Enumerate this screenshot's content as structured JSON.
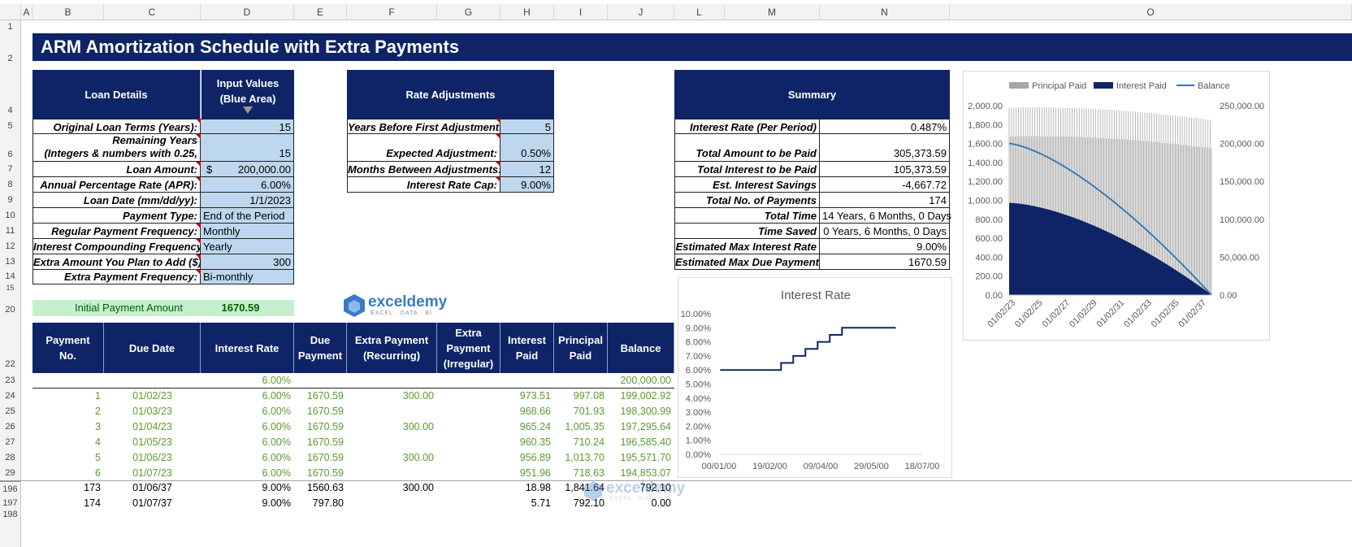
{
  "columns": [
    "A",
    "B",
    "C",
    "D",
    "E",
    "F",
    "G",
    "H",
    "I",
    "J",
    "L",
    "M",
    "N",
    "O"
  ],
  "rows": {
    "r1": "1",
    "r2": "2",
    "r4": "4",
    "r5": "5",
    "r6": "6",
    "r7": "7",
    "r8": "8",
    "r9": "9",
    "r10": "10",
    "r11": "11",
    "r12": "12",
    "r13": "13",
    "r14": "14",
    "r15": "15",
    "r20": "20",
    "r22": "22",
    "r23": "23",
    "r24": "24",
    "r25": "25",
    "r26": "26",
    "r27": "27",
    "r28": "28",
    "r29": "29",
    "r196": "196",
    "r197": "197",
    "r198": "198"
  },
  "title": "ARM Amortization Schedule with Extra Payments",
  "loan": {
    "header": "Loan Details",
    "input_header_1": "Input Values",
    "input_header_2": "(Blue Area)",
    "rows": [
      {
        "label": "Original Loan Terms (Years):",
        "value": "15"
      },
      {
        "label": "Remaining Years",
        "label2": "(Integers & numbers with 0.25,",
        "value": "15"
      },
      {
        "label": "Loan Amount:",
        "currency": "$",
        "value": "200,000.00"
      },
      {
        "label": "Annual Percentage Rate (APR):",
        "value": "6.00%"
      },
      {
        "label": "Loan Date (mm/dd/yy):",
        "value": "1/1/2023"
      },
      {
        "label": "Payment Type:",
        "value": "End of the Period"
      },
      {
        "label": "Regular Payment Frequency:",
        "value": "Monthly"
      },
      {
        "label": "Interest Compounding Frequency:",
        "value": "Yearly"
      },
      {
        "label": "Extra Amount You Plan to Add ($):",
        "value": "300"
      },
      {
        "label": "Extra Payment Frequency:",
        "value": "Bi-monthly"
      }
    ]
  },
  "rate": {
    "header": "Rate Adjustments",
    "rows": [
      {
        "label": "Years Before First Adjustment:",
        "value": "5"
      },
      {
        "label": "Expected Adjustment:",
        "value": "0.50%"
      },
      {
        "label": "Months Between Adjustments:",
        "value": "12"
      },
      {
        "label": "Interest Rate Cap:",
        "value": "9.00%"
      }
    ]
  },
  "summary": {
    "header": "Summary",
    "rows": [
      {
        "label": "Interest Rate (Per Period)",
        "value": "0.487%"
      },
      {
        "label": "Total Amount to be Paid",
        "value": "305,373.59"
      },
      {
        "label": "Total Interest to be Paid",
        "value": "105,373.59"
      },
      {
        "label": "Est. Interest Savings",
        "value": "-4,667.72"
      },
      {
        "label": "Total No. of Payments",
        "value": "174"
      },
      {
        "label": "Total Time",
        "value": "14 Years, 6 Months, 0 Days"
      },
      {
        "label": "Time Saved",
        "value": "0 Years, 6 Months, 0 Days"
      },
      {
        "label": "Estimated Max Interest Rate",
        "value": "9.00%"
      },
      {
        "label": "Estimated Max Due Payment",
        "value": "1670.59"
      }
    ]
  },
  "initial_payment": {
    "label": "Initial Payment Amount",
    "value": "1670.59"
  },
  "logo": {
    "name": "exceldemy",
    "tagline": "EXCEL · DATA · BI"
  },
  "schedule": {
    "headers": [
      [
        "Payment",
        "No."
      ],
      [
        "Due Date"
      ],
      [
        "Interest Rate"
      ],
      [
        "Due",
        "Payment"
      ],
      [
        "Extra Payment",
        "(Recurring)"
      ],
      [
        "Extra",
        "Payment",
        "(Irregular)"
      ],
      [
        "Interest",
        "Paid"
      ],
      [
        "Principal",
        "Paid"
      ],
      [
        "Balance"
      ]
    ],
    "start_row": {
      "rate": "6.00%",
      "balance": "200,000.00"
    },
    "rows": [
      {
        "no": "1",
        "date": "01/02/23",
        "rate": "6.00%",
        "due": "1670.59",
        "extra": "300.00",
        "irr": "",
        "interest": "973.51",
        "principal": "997.08",
        "balance": "199,002.92"
      },
      {
        "no": "2",
        "date": "01/03/23",
        "rate": "6.00%",
        "due": "1670.59",
        "extra": "",
        "irr": "",
        "interest": "968.66",
        "principal": "701.93",
        "balance": "198,300.99"
      },
      {
        "no": "3",
        "date": "01/04/23",
        "rate": "6.00%",
        "due": "1670.59",
        "extra": "300.00",
        "irr": "",
        "interest": "965.24",
        "principal": "1,005.35",
        "balance": "197,295.64"
      },
      {
        "no": "4",
        "date": "01/05/23",
        "rate": "6.00%",
        "due": "1670.59",
        "extra": "",
        "irr": "",
        "interest": "960.35",
        "principal": "710.24",
        "balance": "196,585.40"
      },
      {
        "no": "5",
        "date": "01/06/23",
        "rate": "6.00%",
        "due": "1670.59",
        "extra": "300.00",
        "irr": "",
        "interest": "956.89",
        "principal": "1,013.70",
        "balance": "195,571.70"
      },
      {
        "no": "6",
        "date": "01/07/23",
        "rate": "6.00%",
        "due": "1670.59",
        "extra": "",
        "irr": "",
        "interest": "951.96",
        "principal": "718.63",
        "balance": "194,853.07"
      }
    ],
    "end_rows": [
      {
        "no": "173",
        "date": "01/06/37",
        "rate": "9.00%",
        "due": "1560.63",
        "extra": "300.00",
        "irr": "",
        "interest": "18.98",
        "principal": "1,841.64",
        "balance": "792.10"
      },
      {
        "no": "174",
        "date": "01/07/37",
        "rate": "9.00%",
        "due": "797.80",
        "extra": "",
        "irr": "",
        "interest": "5.71",
        "principal": "792.10",
        "balance": "0.00"
      }
    ]
  },
  "colors": {
    "navy": "#0e2466",
    "input_blue": "#bdd7ee",
    "green_text": "#5b9b2f",
    "initial_bg": "#c6efce",
    "balance_line": "#2e75b6",
    "principal_bar": "#a6a6a6"
  },
  "chart_data": [
    {
      "type": "line",
      "title": "Interest Rate",
      "x_tick_labels": [
        "00/01/00",
        "19/02/00",
        "09/04/00",
        "29/05/00",
        "18/07/00"
      ],
      "xlim": [
        0,
        200
      ],
      "y_tick_labels": [
        "0.00%",
        "1.00%",
        "2.00%",
        "3.00%",
        "4.00%",
        "5.00%",
        "6.00%",
        "7.00%",
        "8.00%",
        "9.00%",
        "10.00%"
      ],
      "ylim": [
        0,
        10
      ],
      "series": [
        {
          "name": "Interest Rate",
          "x": [
            1,
            61,
            61,
            73,
            73,
            85,
            85,
            97,
            97,
            109,
            109,
            121,
            121,
            133,
            133,
            174
          ],
          "y": [
            6.0,
            6.0,
            6.5,
            6.5,
            7.0,
            7.0,
            7.5,
            7.5,
            8.0,
            8.0,
            8.5,
            8.5,
            9.0,
            9.0,
            9.0,
            9.0
          ]
        }
      ],
      "color": "#0e2466"
    },
    {
      "type": "bar",
      "title": "",
      "legend": [
        "Principal Paid",
        "Interest Paid",
        "Balance"
      ],
      "x_tick_labels": [
        "01/02/23",
        "01/02/25",
        "01/02/27",
        "01/02/29",
        "01/02/31",
        "01/02/33",
        "01/02/35",
        "01/02/37"
      ],
      "y_left_tick_labels": [
        "0.00",
        "200.00",
        "400.00",
        "600.00",
        "800.00",
        "1,000.00",
        "1,200.00",
        "1,400.00",
        "1,600.00",
        "1,800.00",
        "2,000.00"
      ],
      "y_right_tick_labels": [
        "0.00",
        "50,000.00",
        "100,000.00",
        "150,000.00",
        "200,000.00",
        "250,000.00"
      ],
      "ylim_left": [
        0,
        2000
      ],
      "ylim_right": [
        0,
        250000
      ],
      "n_payments": 174,
      "interest_start": 973.51,
      "interest_end": 5.71,
      "principal_low_start": 701.93,
      "principal_high_start": 1005.35,
      "principal_low_end": 1541.64,
      "principal_high_end": 1841.64,
      "balance_start": 200000,
      "balance_end": 0
    }
  ]
}
